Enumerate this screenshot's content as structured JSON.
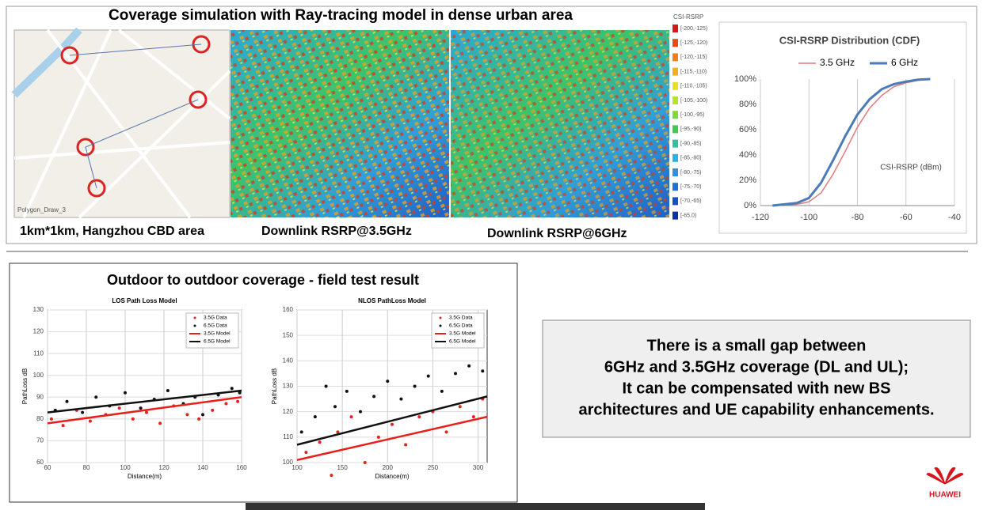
{
  "slide": {
    "top_title": "Coverage simulation with Ray-tracing model in dense urban area",
    "captions": [
      "1km*1km, Hangzhou CBD area",
      "Downlink RSRP@3.5GHz",
      "Downlink RSRP@6GHz"
    ],
    "map_label": "Polygon_Draw_3",
    "legend": {
      "title": "CSI-RSRP",
      "labels": [
        "[-200,-125)",
        "[-125,-120)",
        "[-120,-115)",
        "[-115,-110)",
        "[-110,-105)",
        "[-105,-100)",
        "[-100,-95)",
        "[-95,-90)",
        "[-90,-85)",
        "[-85,-80)",
        "[-80,-75)",
        "[-75,-70)",
        "[-70,-65)",
        "[-65,0)"
      ]
    },
    "bottom_title": "Outdoor to outdoor coverage - field test result",
    "note": [
      "There is a small gap between",
      "6GHz and 3.5GHz coverage (DL and UL);",
      "It can be compensated with new BS",
      "architectures and UE capability enhancements."
    ],
    "logo": "HUAWEI"
  },
  "chart_data": [
    {
      "type": "line",
      "title": "CSI-RSRP Distribution (CDF)",
      "annotation": "CSI-RSRP (dBm)",
      "grid": "x",
      "x": [
        -115,
        -110,
        -105,
        -100,
        -95,
        -90,
        -85,
        -80,
        -75,
        -70,
        -65,
        -60,
        -55,
        -50
      ],
      "series": [
        {
          "name": "3.5 GHz",
          "color": "#e07a7a",
          "values": [
            0,
            0.5,
            1,
            3,
            10,
            25,
            43,
            62,
            77,
            87,
            94,
            97,
            99,
            100
          ]
        },
        {
          "name": "6 GHz",
          "color": "#4a7ab8",
          "values": [
            0,
            1,
            2,
            6,
            18,
            36,
            55,
            72,
            84,
            92,
            96,
            98,
            99.5,
            100
          ]
        }
      ],
      "xlim": [
        -120,
        -40
      ],
      "xticks": [
        -120,
        -100,
        -80,
        -60,
        -40
      ],
      "ylim": [
        0,
        100
      ],
      "yticks": [
        {
          "value": 0,
          "label": "0%"
        },
        {
          "value": 20,
          "label": "20%"
        },
        {
          "value": 40,
          "label": "40%"
        },
        {
          "value": 60,
          "label": "60%"
        },
        {
          "value": 80,
          "label": "80%"
        },
        {
          "value": 100,
          "label": "100%"
        }
      ]
    },
    {
      "type": "scatter",
      "title": "LOS Path Loss Model",
      "xlabel": "Distance(m)",
      "ylabel": "PathLoss dB",
      "grid": true,
      "series": [
        {
          "name": "3.5G Data",
          "color": "#e8201c",
          "mode": "points",
          "x": [
            62,
            68,
            75,
            82,
            90,
            97,
            104,
            111,
            118,
            125,
            132,
            138,
            145,
            152,
            158
          ],
          "values": [
            80,
            77,
            84,
            79,
            82,
            85,
            80,
            83,
            78,
            86,
            82,
            80,
            84,
            87,
            88
          ]
        },
        {
          "name": "6.5G Data",
          "color": "#111111",
          "mode": "points",
          "x": [
            64,
            70,
            78,
            85,
            92,
            100,
            108,
            115,
            122,
            130,
            136,
            140,
            148,
            155,
            159
          ],
          "values": [
            84,
            88,
            83,
            90,
            86,
            92,
            85,
            89,
            93,
            87,
            90,
            82,
            91,
            94,
            92
          ]
        },
        {
          "name": "3.5G Model",
          "color": "#e8201c",
          "mode": "line",
          "x": [
            60,
            160
          ],
          "values": [
            78,
            90
          ]
        },
        {
          "name": "6.5G Model",
          "color": "#111111",
          "mode": "line",
          "x": [
            60,
            160
          ],
          "values": [
            83,
            93
          ]
        }
      ],
      "xlim": [
        60,
        160
      ],
      "xticks": [
        60,
        80,
        100,
        120,
        140,
        160
      ],
      "ylim": [
        60,
        130
      ],
      "yticks": [
        60,
        70,
        80,
        90,
        100,
        110,
        120,
        130
      ]
    },
    {
      "type": "scatter",
      "title": "NLOS PathLoss Model",
      "xlabel": "Distance(m)",
      "ylabel": "PathLoss dB",
      "grid": true,
      "series": [
        {
          "name": "3.5G Data",
          "color": "#e8201c",
          "mode": "points",
          "x": [
            110,
            125,
            138,
            145,
            160,
            175,
            190,
            205,
            220,
            235,
            250,
            265,
            280,
            295,
            305
          ],
          "values": [
            104,
            108,
            95,
            112,
            118,
            100,
            110,
            115,
            107,
            118,
            120,
            112,
            122,
            118,
            125
          ]
        },
        {
          "name": "6.5G Data",
          "color": "#111111",
          "mode": "points",
          "x": [
            105,
            120,
            132,
            142,
            155,
            170,
            185,
            200,
            215,
            230,
            245,
            260,
            275,
            290,
            305
          ],
          "values": [
            112,
            118,
            130,
            122,
            128,
            120,
            126,
            132,
            125,
            130,
            134,
            128,
            135,
            138,
            136
          ]
        },
        {
          "name": "3.5G Model",
          "color": "#e8201c",
          "mode": "line",
          "x": [
            100,
            310
          ],
          "values": [
            101,
            118
          ]
        },
        {
          "name": "6.5G Model",
          "color": "#111111",
          "mode": "line",
          "x": [
            100,
            310
          ],
          "values": [
            107,
            126
          ]
        }
      ],
      "xlim": [
        100,
        310
      ],
      "xticks": [
        100,
        150,
        200,
        250,
        300
      ],
      "ylim": [
        100,
        160
      ],
      "yticks": [
        100,
        110,
        120,
        130,
        140,
        150,
        160
      ]
    }
  ]
}
